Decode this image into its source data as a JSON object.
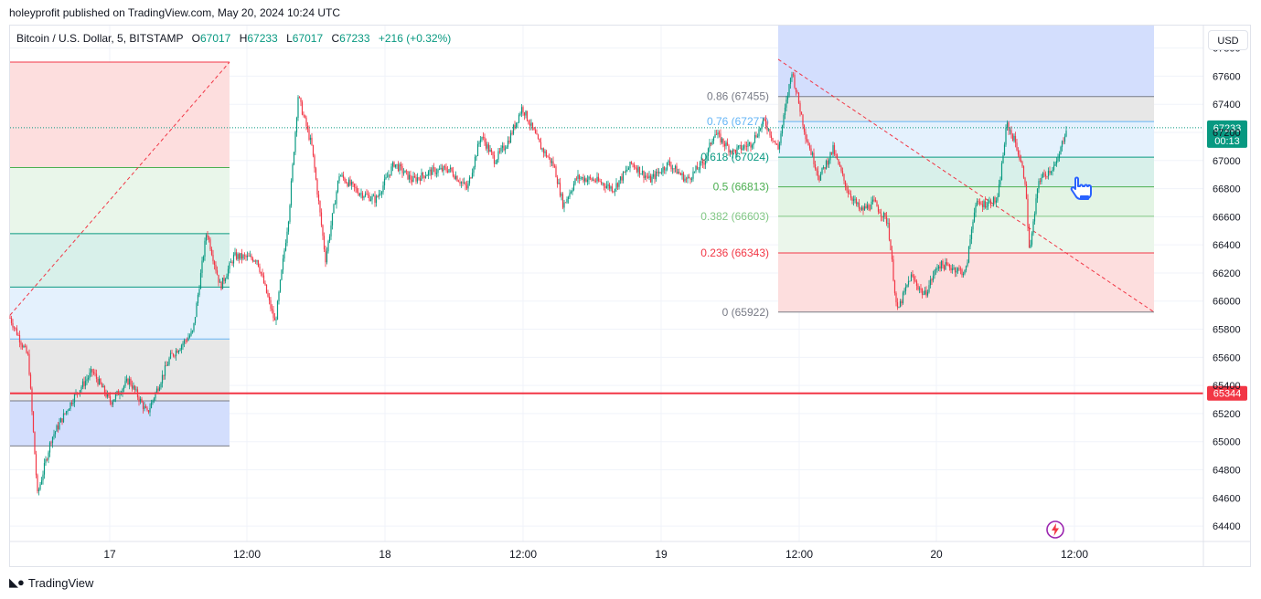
{
  "header": {
    "published": "holeyprofit published on TradingView.com, May 20, 2024 10:24 UTC"
  },
  "legend": {
    "symbol": "Bitcoin / U.S. Dollar, 5, BITSTAMP",
    "o_label": "O",
    "o": "67017",
    "h_label": "H",
    "h": "67233",
    "l_label": "L",
    "l": "67017",
    "c_label": "C",
    "c": "67233",
    "change": "+216 (+0.32%)"
  },
  "currency_button": "USD",
  "footer": {
    "brand": "TradingView"
  },
  "colors": {
    "up": "#089981",
    "down": "#f23645",
    "line": "#f23645"
  },
  "chart_data": {
    "type": "candlestick",
    "symbol": "BTCUSD",
    "timeframe": "5",
    "exchange": "BITSTAMP",
    "y_ticks": [
      67800,
      67600,
      67400,
      67200,
      67000,
      66800,
      66600,
      66400,
      66200,
      66000,
      65800,
      65600,
      65400,
      65200,
      65000,
      64800,
      64600,
      64400
    ],
    "ylim": [
      64290,
      67960
    ],
    "x_ticks": [
      "17",
      "12:00",
      "18",
      "12:00",
      "19",
      "12:00",
      "20",
      "12:00"
    ],
    "last_price": "67233",
    "countdown": "00:13",
    "horizontal_line": {
      "price": 65344,
      "label": "65344",
      "color": "#f23645"
    },
    "price_path": [
      [
        0,
        65880
      ],
      [
        20,
        65600
      ],
      [
        30,
        64620
      ],
      [
        45,
        65020
      ],
      [
        70,
        65320
      ],
      [
        90,
        65500
      ],
      [
        110,
        65280
      ],
      [
        130,
        65440
      ],
      [
        150,
        65200
      ],
      [
        175,
        65600
      ],
      [
        200,
        65780
      ],
      [
        215,
        66500
      ],
      [
        230,
        66100
      ],
      [
        245,
        66320
      ],
      [
        270,
        66300
      ],
      [
        290,
        65840
      ],
      [
        305,
        66620
      ],
      [
        315,
        67460
      ],
      [
        330,
        67100
      ],
      [
        345,
        66300
      ],
      [
        360,
        66900
      ],
      [
        380,
        66780
      ],
      [
        400,
        66720
      ],
      [
        420,
        66980
      ],
      [
        440,
        66860
      ],
      [
        460,
        66920
      ],
      [
        480,
        66940
      ],
      [
        500,
        66800
      ],
      [
        515,
        67180
      ],
      [
        530,
        67000
      ],
      [
        545,
        67140
      ],
      [
        560,
        67380
      ],
      [
        580,
        67100
      ],
      [
        595,
        66960
      ],
      [
        605,
        66680
      ],
      [
        620,
        66880
      ],
      [
        640,
        66860
      ],
      [
        660,
        66800
      ],
      [
        680,
        66980
      ],
      [
        700,
        66860
      ],
      [
        720,
        66980
      ],
      [
        740,
        66860
      ],
      [
        760,
        67000
      ],
      [
        770,
        67200
      ],
      [
        790,
        67060
      ],
      [
        810,
        67120
      ],
      [
        825,
        67280
      ],
      [
        840,
        67080
      ],
      [
        855,
        67640
      ],
      [
        870,
        67180
      ],
      [
        885,
        66880
      ],
      [
        900,
        67080
      ],
      [
        915,
        66800
      ],
      [
        930,
        66640
      ],
      [
        945,
        66700
      ],
      [
        960,
        66560
      ],
      [
        970,
        65920
      ],
      [
        985,
        66180
      ],
      [
        1000,
        66040
      ],
      [
        1015,
        66260
      ],
      [
        1030,
        66240
      ],
      [
        1045,
        66200
      ],
      [
        1055,
        66680
      ],
      [
        1070,
        66700
      ],
      [
        1080,
        66720
      ],
      [
        1090,
        67260
      ],
      [
        1100,
        67120
      ],
      [
        1110,
        66860
      ],
      [
        1115,
        66340
      ],
      [
        1125,
        66860
      ],
      [
        1135,
        66920
      ],
      [
        1145,
        66980
      ],
      [
        1155,
        67233
      ]
    ],
    "fib_right": {
      "levels": [
        {
          "ratio": "0.86",
          "price": 67455,
          "label": "0.86 (67455)",
          "color": "#787b86",
          "fill": "#e6e6e6"
        },
        {
          "ratio": "0.76",
          "price": 67277,
          "label": "0.76 (67277)",
          "color": "#64b5f6",
          "fill": "#e3f0fd"
        },
        {
          "ratio": "0.618",
          "price": 67024,
          "label": "0.618 (67024)",
          "color": "#089981",
          "fill": "#d6efe9"
        },
        {
          "ratio": "0.5",
          "price": 66813,
          "label": "0.5 (66813)",
          "color": "#4caf50",
          "fill": "#e2f3e3"
        },
        {
          "ratio": "0.382",
          "price": 66603,
          "label": "0.382 (66603)",
          "color": "#81c784",
          "fill": "#eaf6ea"
        },
        {
          "ratio": "0.236",
          "price": 66343,
          "label": "0.236 (66343)",
          "color": "#f23645",
          "fill": "#fddcdc"
        },
        {
          "ratio": "0",
          "price": 65922,
          "label": "0 (65922)",
          "color": "#787b86",
          "fill": ""
        }
      ],
      "extension_top": 67960,
      "extension_fill": "#d1dcfd"
    },
    "fib_left": {
      "prices": [
        67700,
        66950,
        66480,
        66100,
        65730,
        65290,
        64970,
        64290
      ],
      "fills": [
        "#fddcdc",
        "#e8f5e9",
        "#d6efe9",
        "#e3f0fd",
        "#e6e6e6",
        "#d1dcfd"
      ]
    }
  }
}
